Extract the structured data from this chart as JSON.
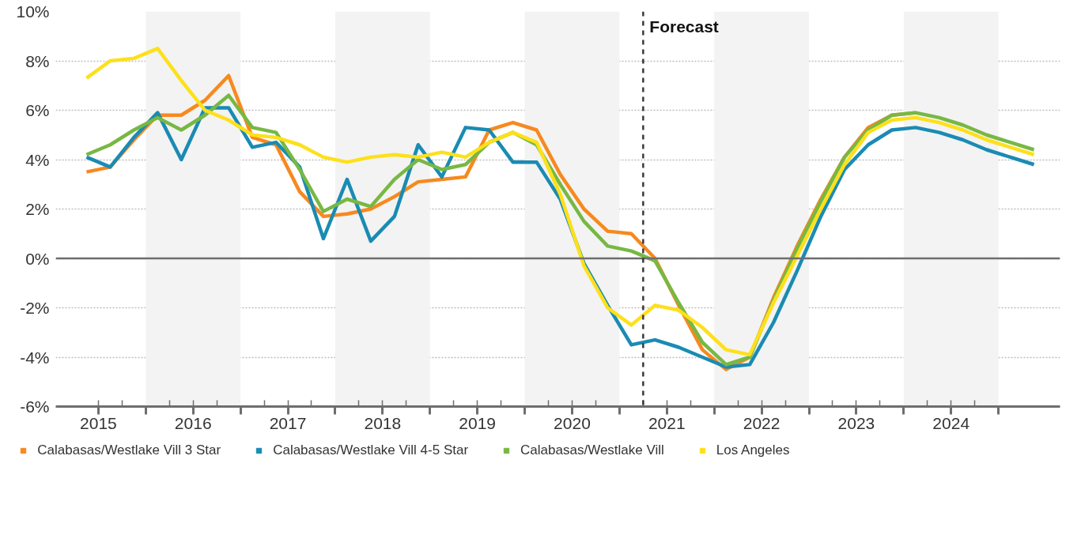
{
  "chart_data": {
    "type": "line",
    "x": [
      2015.375,
      2015.625,
      2015.875,
      2016.125,
      2016.375,
      2016.625,
      2016.875,
      2017.125,
      2017.375,
      2017.625,
      2017.875,
      2018.125,
      2018.375,
      2018.625,
      2018.875,
      2019.125,
      2019.375,
      2019.625,
      2019.875,
      2020.125,
      2020.375,
      2020.625,
      2020.875,
      2021.125,
      2021.375,
      2021.625,
      2021.875,
      2022.125,
      2022.375,
      2022.625,
      2022.875,
      2023.125,
      2023.375,
      2023.625,
      2023.875,
      2024.125,
      2024.375,
      2024.625,
      2024.875,
      2025.125,
      2025.375
    ],
    "series": [
      {
        "name": "Calabasas/Westlake Vill 3 Star",
        "color": "#f7891f",
        "values": [
          3.5,
          3.7,
          4.8,
          5.8,
          5.8,
          6.4,
          7.4,
          4.9,
          4.6,
          2.7,
          1.7,
          1.8,
          2.0,
          2.5,
          3.1,
          3.2,
          3.3,
          5.2,
          5.5,
          5.2,
          3.4,
          2.0,
          1.1,
          1.0,
          0.0,
          -1.9,
          -3.7,
          -4.5,
          -4.0,
          -1.6,
          0.5,
          2.4,
          4.1,
          5.3,
          5.8,
          5.9,
          null,
          null,
          null,
          null,
          null
        ]
      },
      {
        "name": "Calabasas/Westlake Vill 4-5 Star",
        "color": "#1a8bb3",
        "values": [
          4.1,
          3.7,
          4.9,
          5.9,
          4.0,
          6.1,
          6.1,
          4.5,
          4.7,
          3.7,
          0.8,
          3.2,
          0.7,
          1.7,
          4.6,
          3.3,
          5.3,
          5.2,
          3.9,
          3.9,
          2.4,
          -0.2,
          -1.9,
          -3.5,
          -3.3,
          -3.6,
          -4.0,
          -4.4,
          -4.3,
          -2.6,
          -0.5,
          1.7,
          3.6,
          4.6,
          5.2,
          5.3,
          5.1,
          4.8,
          4.4,
          4.1,
          3.8
        ]
      },
      {
        "name": "Calabasas/Westlake Vill",
        "color": "#77b843",
        "values": [
          4.2,
          4.6,
          5.2,
          5.7,
          5.2,
          5.8,
          6.6,
          5.3,
          5.1,
          3.6,
          1.9,
          2.4,
          2.1,
          3.2,
          4.0,
          3.6,
          3.8,
          4.7,
          5.1,
          4.6,
          3.0,
          1.5,
          0.5,
          0.3,
          -0.1,
          -1.8,
          -3.4,
          -4.3,
          -4.0,
          -1.7,
          0.4,
          2.3,
          4.1,
          5.2,
          5.8,
          5.9,
          5.7,
          5.4,
          5.0,
          4.7,
          4.4
        ]
      },
      {
        "name": "Los Angeles",
        "color": "#fde01a",
        "values": [
          7.3,
          8.0,
          8.1,
          8.5,
          7.2,
          6.0,
          5.6,
          5.0,
          4.9,
          4.6,
          4.1,
          3.9,
          4.1,
          4.2,
          4.1,
          4.3,
          4.1,
          4.7,
          5.1,
          4.7,
          2.6,
          -0.3,
          -2.0,
          -2.7,
          -1.9,
          -2.1,
          -2.8,
          -3.7,
          -3.9,
          -1.8,
          0.1,
          2.0,
          3.8,
          5.1,
          5.6,
          5.7,
          5.5,
          5.2,
          4.8,
          4.5,
          4.2
        ]
      }
    ],
    "xlim": [
      2015.05,
      2025.65
    ],
    "xticks": [
      {
        "value": 2015.5,
        "label": "2015"
      },
      {
        "value": 2016,
        "label": null
      },
      {
        "value": 2016.5,
        "label": "2016"
      },
      {
        "value": 2017,
        "label": null
      },
      {
        "value": 2017.5,
        "label": "2017"
      },
      {
        "value": 2018,
        "label": null
      },
      {
        "value": 2018.5,
        "label": "2018"
      },
      {
        "value": 2019,
        "label": null
      },
      {
        "value": 2019.5,
        "label": "2019"
      },
      {
        "value": 2020,
        "label": null
      },
      {
        "value": 2020.5,
        "label": "2020"
      },
      {
        "value": 2021,
        "label": null
      },
      {
        "value": 2021.5,
        "label": "2021"
      },
      {
        "value": 2022,
        "label": null
      },
      {
        "value": 2022.5,
        "label": "2022"
      },
      {
        "value": 2023,
        "label": null
      },
      {
        "value": 2023.5,
        "label": "2023"
      },
      {
        "value": 2024,
        "label": null
      },
      {
        "value": 2024.5,
        "label": "2024"
      },
      {
        "value": 2025,
        "label": null
      }
    ],
    "ylim": [
      -6,
      10
    ],
    "yticks": [
      {
        "value": -6,
        "label": "-6%"
      },
      {
        "value": -4,
        "label": "-4%"
      },
      {
        "value": -2,
        "label": "-2%"
      },
      {
        "value": 0,
        "label": "0%"
      },
      {
        "value": 2,
        "label": "2%"
      },
      {
        "value": 4,
        "label": "4%"
      },
      {
        "value": 6,
        "label": "6%"
      },
      {
        "value": 8,
        "label": "8%"
      },
      {
        "value": 10,
        "label": "10%"
      }
    ],
    "grid": "y",
    "legend": "bottom",
    "marker": "none",
    "line_style": "solid",
    "ref_lines": [
      {
        "axis": "y",
        "value": 0,
        "label": null,
        "color": "#6e6e6e",
        "line_style": "solid"
      },
      {
        "axis": "x",
        "value": 2021.25,
        "label": "Forecast",
        "color": "#3a3a3a",
        "line_style": "dashed"
      }
    ],
    "bands": [
      {
        "axis": "x",
        "from": 2016,
        "to": 2017,
        "label": null,
        "color": "#f3f3f3"
      },
      {
        "axis": "x",
        "from": 2018,
        "to": 2019,
        "label": null,
        "color": "#f3f3f3"
      },
      {
        "axis": "x",
        "from": 2020,
        "to": 2021,
        "label": null,
        "color": "#f3f3f3"
      },
      {
        "axis": "x",
        "from": 2022,
        "to": 2023,
        "label": null,
        "color": "#f3f3f3"
      },
      {
        "axis": "x",
        "from": 2024,
        "to": 2025,
        "label": null,
        "color": "#f3f3f3"
      }
    ]
  }
}
